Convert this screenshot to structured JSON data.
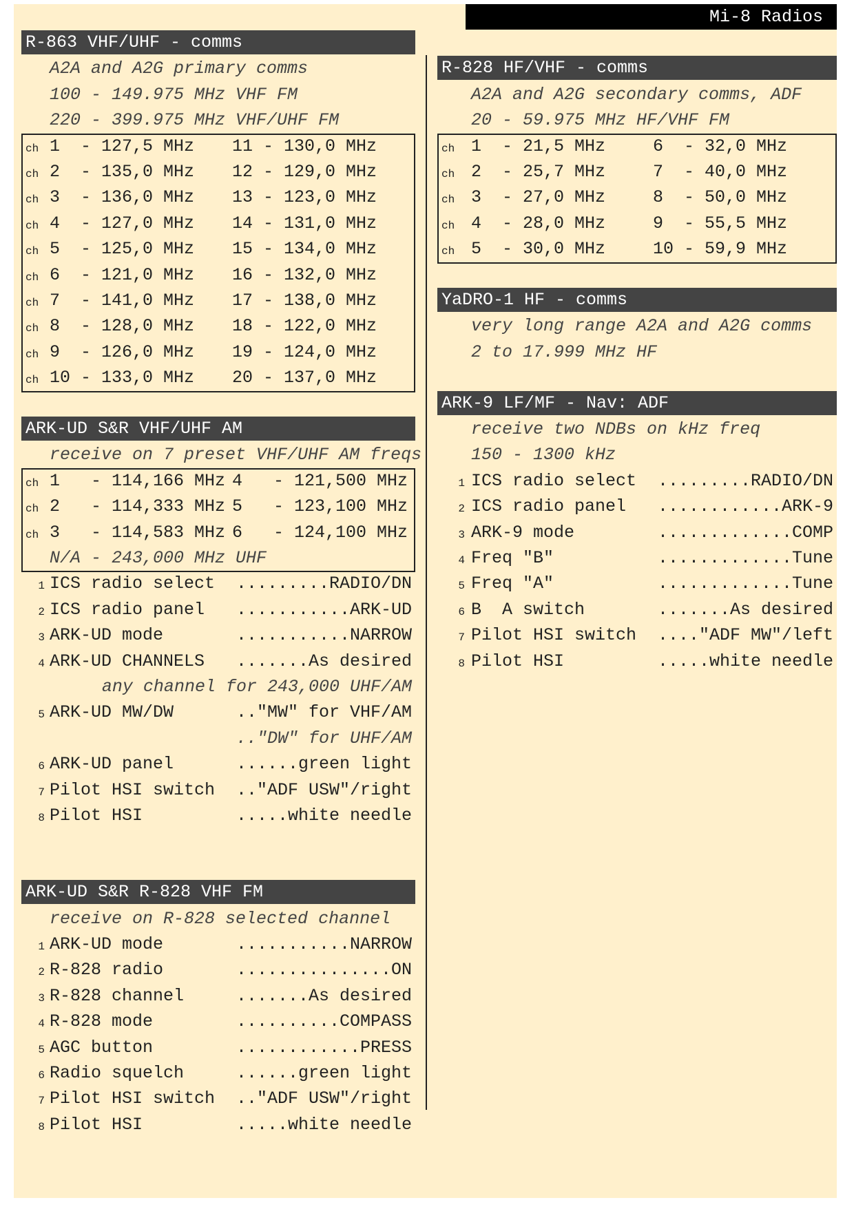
{
  "title": "Mi-8 Radios",
  "colors": {
    "background": "#fff0cc",
    "header": "#444444",
    "title_bar": "#000000",
    "text": "#222222"
  },
  "left": [
    {
      "title": "R-863 VHF/UHF - comms",
      "notes": [
        "A2A and A2G primary comms",
        "100 - 149.975 MHz VHF FM",
        "220 - 399.975 MHz VHF/UHF FM"
      ],
      "table": [
        {
          "p": "ch",
          "a": "1  - 127,5 MHz",
          "b": "11 - 130,0 MHz"
        },
        {
          "p": "ch",
          "a": "2  - 135,0 MHz",
          "b": "12 - 129,0 MHz"
        },
        {
          "p": "ch",
          "a": "3  - 136,0 MHz",
          "b": "13 - 123,0 MHz"
        },
        {
          "p": "ch",
          "a": "4  - 127,0 MHz",
          "b": "14 - 131,0 MHz"
        },
        {
          "p": "ch",
          "a": "5  - 125,0 MHz",
          "b": "15 - 134,0 MHz"
        },
        {
          "p": "ch",
          "a": "6  - 121,0 MHz",
          "b": "16 - 132,0 MHz"
        },
        {
          "p": "ch",
          "a": "7  - 141,0 MHz",
          "b": "17 - 138,0 MHz"
        },
        {
          "p": "ch",
          "a": "8  - 128,0 MHz",
          "b": "18 - 122,0 MHz"
        },
        {
          "p": "ch",
          "a": "9  - 126,0 MHz",
          "b": "19 - 124,0 MHz"
        },
        {
          "p": "ch",
          "a": "10 - 133,0 MHz",
          "b": "20 - 137,0 MHz"
        }
      ],
      "steps": []
    },
    {
      "title": "ARK-UD S&R VHF/UHF AM",
      "notes": [
        "receive on 7 preset VHF/UHF AM freqs"
      ],
      "table": [
        {
          "p": "ch",
          "a": "1   - 114,166 MHz",
          "b": "4   - 121,500 MHz"
        },
        {
          "p": "ch",
          "a": "2   - 114,333 MHz",
          "b": "5   - 123,100 MHz"
        },
        {
          "p": "ch",
          "a": "3   - 114,583 MHz",
          "b": "6   - 124,100 MHz"
        },
        {
          "p": "",
          "a": "N/A - 243,000 MHz UHF",
          "b": "",
          "italic": true
        }
      ],
      "steps": [
        {
          "n": "1",
          "label": "ICS radio select",
          "value": ".........RADIO/DN"
        },
        {
          "n": "2",
          "label": "ICS radio panel",
          "value": "...........ARK-UD"
        },
        {
          "n": "3",
          "label": "ARK-UD mode",
          "value": "...........NARROW"
        },
        {
          "n": "4",
          "label": "ARK-UD CHANNELS",
          "value": ".......As desired"
        },
        {
          "note": "any channel for 243,000 UHF/AM"
        },
        {
          "n": "5",
          "label": "ARK-UD MW/DW",
          "value": "..\"MW\" for VHF/AM"
        },
        {
          "note": "..\"DW\" for UHF/AM"
        },
        {
          "n": "6",
          "label": "ARK-UD panel",
          "value": "......green light"
        },
        {
          "n": "7",
          "label": "Pilot HSI switch",
          "value": "..\"ADF USW\"/right"
        },
        {
          "n": "8",
          "label": "Pilot HSI",
          "value": ".....white needle"
        }
      ]
    },
    {
      "title": "ARK-UD S&R R-828 VHF FM",
      "notes": [
        "receive on R-828 selected channel"
      ],
      "table": [],
      "steps": [
        {
          "n": "1",
          "label": "ARK-UD mode",
          "value": "...........NARROW"
        },
        {
          "n": "2",
          "label": "R-828 radio",
          "value": "...............ON"
        },
        {
          "n": "3",
          "label": "R-828 channel",
          "value": ".......As desired"
        },
        {
          "n": "4",
          "label": "R-828 mode",
          "value": "..........COMPASS"
        },
        {
          "n": "5",
          "label": "AGC button",
          "value": "............PRESS"
        },
        {
          "n": "6",
          "label": "Radio squelch",
          "value": "......green light"
        },
        {
          "n": "7",
          "label": "Pilot HSI switch",
          "value": "..\"ADF USW\"/right"
        },
        {
          "n": "8",
          "label": "Pilot HSI",
          "value": ".....white needle"
        }
      ]
    }
  ],
  "right": [
    {
      "title": "R-828 HF/VHF - comms",
      "notes": [
        "A2A and A2G secondary comms, ADF",
        "20 - 59.975 MHz HF/VHF FM"
      ],
      "table": [
        {
          "p": "ch",
          "a": "1  - 21,5 MHz",
          "b": "6  - 32,0 MHz"
        },
        {
          "p": "ch",
          "a": "2  - 25,7 MHz",
          "b": "7  - 40,0 MHz"
        },
        {
          "p": "ch",
          "a": "3  - 27,0 MHz",
          "b": "8  - 50,0 MHz"
        },
        {
          "p": "ch",
          "a": "4  - 28,0 MHz",
          "b": "9  - 55,5 MHz"
        },
        {
          "p": "ch",
          "a": "5  - 30,0 MHz",
          "b": "10 - 59,9 MHz"
        }
      ],
      "steps": []
    },
    {
      "title": "YaDRO-1 HF - comms",
      "notes": [
        "very long range A2A and A2G comms",
        "2 to 17.999 MHz HF"
      ],
      "table": [],
      "steps": []
    },
    {
      "title": "ARK-9 LF/MF - Nav: ADF",
      "notes": [
        "receive two NDBs on kHz freq",
        "150 - 1300 kHz"
      ],
      "table": [],
      "steps": [
        {
          "n": "1",
          "label": "ICS radio select",
          "value": ".........RADIO/DN"
        },
        {
          "n": "2",
          "label": "ICS radio panel",
          "value": "............ARK-9"
        },
        {
          "n": "3",
          "label": "ARK-9 mode",
          "value": ".............COMP"
        },
        {
          "n": "4",
          "label": "Freq \"B\"",
          "value": ".............Tune"
        },
        {
          "n": "5",
          "label": "Freq \"A\"",
          "value": ".............Tune"
        },
        {
          "n": "6",
          "label": "B  A switch",
          "value": ".......As desired"
        },
        {
          "n": "7",
          "label": "Pilot HSI switch",
          "value": "....\"ADF MW\"/left"
        },
        {
          "n": "8",
          "label": "Pilot HSI",
          "value": ".....white needle"
        }
      ]
    }
  ]
}
